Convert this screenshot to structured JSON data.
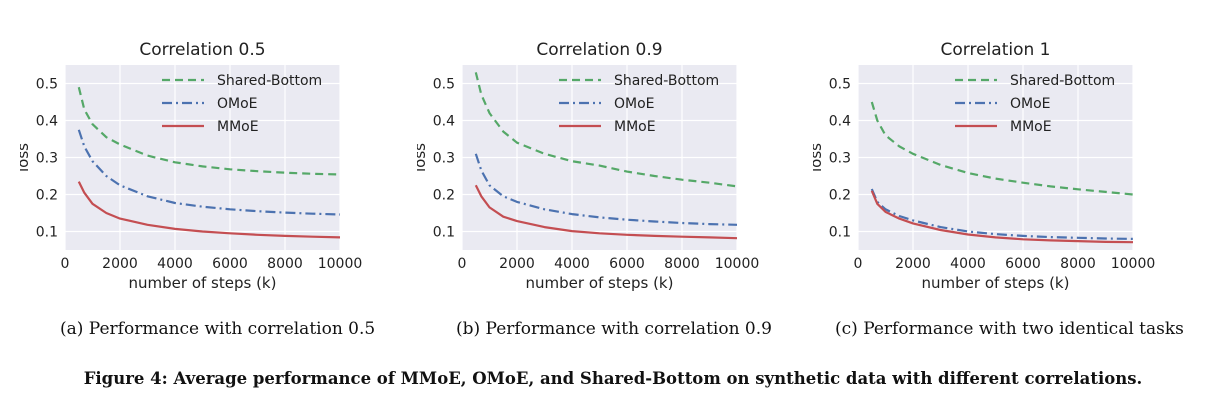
{
  "chart_data": [
    {
      "type": "line",
      "title": "Correlation 0.5",
      "xlabel": "number of steps (k)",
      "ylabel": "loss",
      "xlim": [
        0,
        10000
      ],
      "ylim": [
        0.05,
        0.55
      ],
      "xticks": [
        0,
        2000,
        4000,
        6000,
        8000,
        10000
      ],
      "xtick_labels": [
        "0",
        "2000",
        "4000",
        "6000",
        "8000",
        "10000"
      ],
      "yticks": [
        0.1,
        0.2,
        0.3,
        0.4,
        0.5
      ],
      "ytick_labels": [
        "0.1",
        "0.2",
        "0.3",
        "0.4",
        "0.5"
      ],
      "grid": true,
      "legend": "top-right",
      "caption": "(a) Performance with correlation 0.5",
      "series": [
        {
          "name": "Shared-Bottom",
          "style": "dashed",
          "color": "#55a868",
          "x": [
            500,
            700,
            1000,
            1500,
            2000,
            3000,
            4000,
            5000,
            6000,
            7000,
            8000,
            9000,
            10000
          ],
          "y": [
            0.49,
            0.43,
            0.39,
            0.355,
            0.335,
            0.305,
            0.287,
            0.276,
            0.268,
            0.263,
            0.259,
            0.256,
            0.254
          ]
        },
        {
          "name": "OMoE",
          "style": "dashdot",
          "color": "#4c72b0",
          "x": [
            500,
            700,
            1000,
            1500,
            2000,
            3000,
            4000,
            5000,
            6000,
            7000,
            8000,
            9000,
            10000
          ],
          "y": [
            0.375,
            0.33,
            0.29,
            0.25,
            0.225,
            0.195,
            0.177,
            0.167,
            0.16,
            0.155,
            0.151,
            0.148,
            0.146
          ]
        },
        {
          "name": "MMoE",
          "style": "solid",
          "color": "#c44e52",
          "x": [
            500,
            700,
            1000,
            1500,
            2000,
            3000,
            4000,
            5000,
            6000,
            7000,
            8000,
            9000,
            10000
          ],
          "y": [
            0.235,
            0.205,
            0.175,
            0.15,
            0.135,
            0.118,
            0.107,
            0.1,
            0.095,
            0.091,
            0.088,
            0.086,
            0.084
          ]
        }
      ]
    },
    {
      "type": "line",
      "title": "Correlation 0.9",
      "xlabel": "number of steps (k)",
      "ylabel": "loss",
      "xlim": [
        0,
        10000
      ],
      "ylim": [
        0.05,
        0.55
      ],
      "xticks": [
        0,
        2000,
        4000,
        6000,
        8000,
        10000
      ],
      "xtick_labels": [
        "0",
        "2000",
        "4000",
        "6000",
        "8000",
        "10000"
      ],
      "yticks": [
        0.1,
        0.2,
        0.3,
        0.4,
        0.5
      ],
      "ytick_labels": [
        "0.1",
        "0.2",
        "0.3",
        "0.4",
        "0.5"
      ],
      "grid": true,
      "legend": "top-right",
      "caption": "(b) Performance with correlation 0.9",
      "series": [
        {
          "name": "Shared-Bottom",
          "style": "dashed",
          "color": "#55a868",
          "x": [
            500,
            700,
            1000,
            1500,
            2000,
            3000,
            4000,
            5000,
            6000,
            7000,
            8000,
            9000,
            10000
          ],
          "y": [
            0.53,
            0.47,
            0.42,
            0.37,
            0.34,
            0.31,
            0.29,
            0.278,
            0.262,
            0.25,
            0.24,
            0.232,
            0.222
          ]
        },
        {
          "name": "OMoE",
          "style": "dashdot",
          "color": "#4c72b0",
          "x": [
            500,
            700,
            1000,
            1500,
            2000,
            3000,
            4000,
            5000,
            6000,
            7000,
            8000,
            9000,
            10000
          ],
          "y": [
            0.31,
            0.265,
            0.225,
            0.195,
            0.18,
            0.16,
            0.147,
            0.138,
            0.132,
            0.127,
            0.123,
            0.12,
            0.118
          ]
        },
        {
          "name": "MMoE",
          "style": "solid",
          "color": "#c44e52",
          "x": [
            500,
            700,
            1000,
            1500,
            2000,
            3000,
            4000,
            5000,
            6000,
            7000,
            8000,
            9000,
            10000
          ],
          "y": [
            0.225,
            0.195,
            0.165,
            0.14,
            0.128,
            0.112,
            0.101,
            0.095,
            0.091,
            0.088,
            0.086,
            0.084,
            0.082
          ]
        }
      ]
    },
    {
      "type": "line",
      "title": "Correlation 1",
      "xlabel": "number of steps (k)",
      "ylabel": "loss",
      "xlim": [
        0,
        10000
      ],
      "ylim": [
        0.05,
        0.55
      ],
      "xticks": [
        0,
        2000,
        4000,
        6000,
        8000,
        10000
      ],
      "xtick_labels": [
        "0",
        "2000",
        "4000",
        "6000",
        "8000",
        "10000"
      ],
      "yticks": [
        0.1,
        0.2,
        0.3,
        0.4,
        0.5
      ],
      "ytick_labels": [
        "0.1",
        "0.2",
        "0.3",
        "0.4",
        "0.5"
      ],
      "grid": true,
      "legend": "top-right",
      "caption": "(c) Performance with two identical tasks",
      "series": [
        {
          "name": "Shared-Bottom",
          "style": "dashed",
          "color": "#55a868",
          "x": [
            500,
            700,
            1000,
            1500,
            2000,
            3000,
            4000,
            5000,
            6000,
            7000,
            8000,
            9000,
            10000
          ],
          "y": [
            0.45,
            0.4,
            0.36,
            0.33,
            0.31,
            0.28,
            0.258,
            0.243,
            0.232,
            0.222,
            0.214,
            0.207,
            0.2
          ]
        },
        {
          "name": "OMoE",
          "style": "dashdot",
          "color": "#4c72b0",
          "x": [
            500,
            700,
            1000,
            1500,
            2000,
            3000,
            4000,
            5000,
            6000,
            7000,
            8000,
            9000,
            10000
          ],
          "y": [
            0.215,
            0.18,
            0.16,
            0.142,
            0.13,
            0.112,
            0.1,
            0.093,
            0.088,
            0.085,
            0.083,
            0.081,
            0.08
          ]
        },
        {
          "name": "MMoE",
          "style": "solid",
          "color": "#c44e52",
          "x": [
            500,
            700,
            1000,
            1500,
            2000,
            3000,
            4000,
            5000,
            6000,
            7000,
            8000,
            9000,
            10000
          ],
          "y": [
            0.21,
            0.175,
            0.153,
            0.135,
            0.122,
            0.104,
            0.092,
            0.084,
            0.079,
            0.076,
            0.074,
            0.072,
            0.071
          ]
        }
      ]
    }
  ],
  "figure_caption": "Figure 4: Average performance of MMoE, OMoE, and Shared-Bottom on synthetic data with different correlations."
}
